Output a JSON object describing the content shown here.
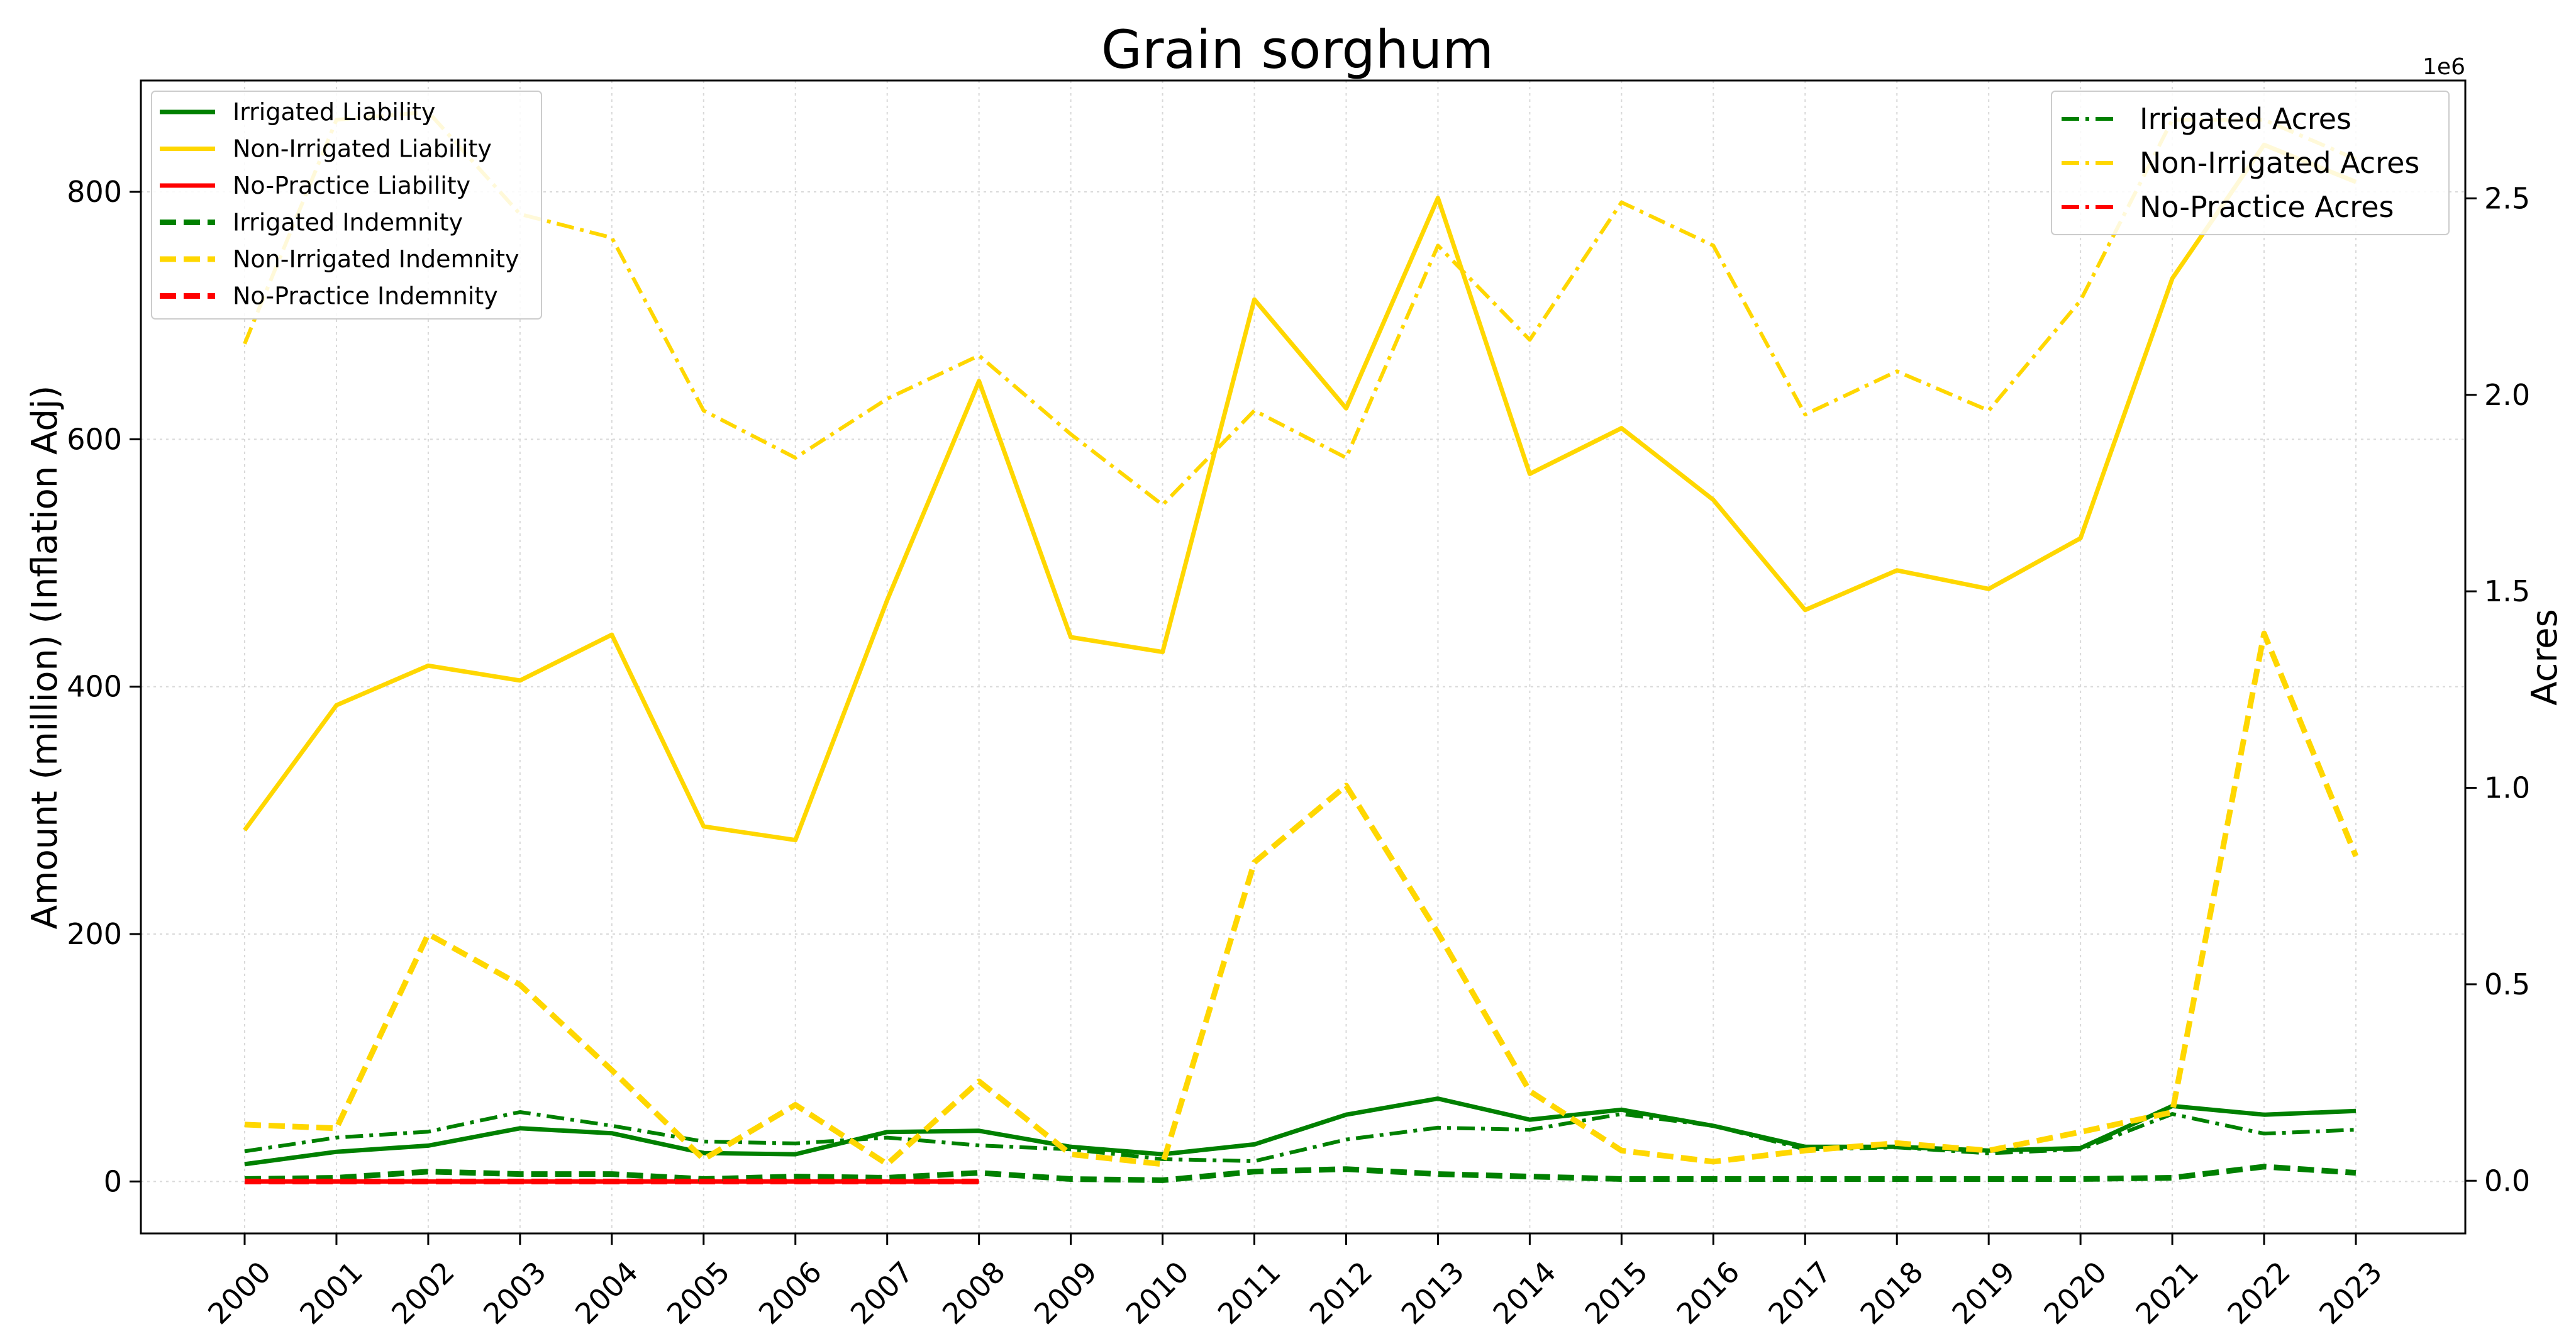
{
  "chart_data": {
    "type": "line",
    "title": "Grain sorghum",
    "ylabel": "Amount (million) (Inflation Adj)",
    "y2label": "Acres",
    "y2_offset_label": "1e6",
    "x": [
      2000,
      2001,
      2002,
      2003,
      2004,
      2005,
      2006,
      2007,
      2008,
      2009,
      2010,
      2011,
      2012,
      2013,
      2014,
      2015,
      2016,
      2017,
      2018,
      2019,
      2020,
      2021,
      2022,
      2023
    ],
    "x_tick_labels": [
      "2000",
      "2001",
      "2002",
      "2003",
      "2004",
      "2005",
      "2006",
      "2007",
      "2008",
      "2009",
      "2010",
      "2011",
      "2012",
      "2013",
      "2014",
      "2015",
      "2016",
      "2017",
      "2018",
      "2019",
      "2020",
      "2021",
      "2022",
      "2023"
    ],
    "ylim": [
      -42,
      890
    ],
    "y_ticks": [
      0,
      200,
      400,
      600,
      800
    ],
    "y_tick_labels": [
      "0",
      "200",
      "400",
      "600",
      "800"
    ],
    "y2lim": [
      -0.134,
      2.8
    ],
    "y2_ticks": [
      0.0,
      0.5,
      1.0,
      1.5,
      2.0,
      2.5
    ],
    "y2_tick_labels": [
      "0.0",
      "0.5",
      "1.0",
      "1.5",
      "2.0",
      "2.5"
    ],
    "grid": true,
    "legend_left_placement": "upper-left",
    "legend_right_placement": "upper-right",
    "series": [
      {
        "name": "Irrigated Liability",
        "axis": "left",
        "style": "solid",
        "color": "#008000",
        "x": [
          2000,
          2001,
          2002,
          2003,
          2004,
          2005,
          2006,
          2007,
          2008,
          2009,
          2010,
          2011,
          2012,
          2013,
          2014,
          2015,
          2016,
          2017,
          2018,
          2019,
          2020,
          2021,
          2022,
          2023
        ],
        "values": [
          14,
          24,
          29,
          43,
          39,
          23,
          22,
          40,
          41,
          28,
          22,
          30,
          54,
          67,
          50,
          58,
          45,
          28,
          28,
          25,
          27,
          61,
          54,
          57
        ]
      },
      {
        "name": "Non-Irrigated Liability",
        "axis": "left",
        "style": "solid",
        "color": "#FFD700",
        "x": [
          2000,
          2001,
          2002,
          2003,
          2004,
          2005,
          2006,
          2007,
          2008,
          2009,
          2010,
          2011,
          2012,
          2013,
          2014,
          2015,
          2016,
          2017,
          2018,
          2019,
          2020,
          2021,
          2022,
          2023
        ],
        "values": [
          284,
          385,
          417,
          405,
          442,
          287,
          276,
          470,
          647,
          440,
          428,
          713,
          625,
          795,
          572,
          609,
          551,
          462,
          494,
          479,
          520,
          730,
          838,
          808
        ]
      },
      {
        "name": "No-Practice Liability",
        "axis": "left",
        "style": "solid",
        "color": "#FF0000",
        "x": [
          2000,
          2001,
          2002,
          2003,
          2004,
          2005,
          2006,
          2007,
          2008
        ],
        "values": [
          0,
          0,
          0,
          0,
          0,
          0,
          0,
          0,
          0
        ]
      },
      {
        "name": "Irrigated Indemnity",
        "axis": "left",
        "style": "dashed",
        "color": "#008000",
        "x": [
          2000,
          2001,
          2002,
          2003,
          2004,
          2005,
          2006,
          2007,
          2008,
          2009,
          2010,
          2011,
          2012,
          2013,
          2014,
          2015,
          2016,
          2017,
          2018,
          2019,
          2020,
          2021,
          2022,
          2023
        ],
        "values": [
          2,
          3,
          8,
          6,
          6,
          2,
          4,
          3,
          7,
          2,
          1,
          8,
          10,
          6,
          4,
          2,
          2,
          2,
          2,
          2,
          2,
          3,
          12,
          7
        ]
      },
      {
        "name": "Non-Irrigated Indemnity",
        "axis": "left",
        "style": "dashed",
        "color": "#FFD700",
        "x": [
          2000,
          2001,
          2002,
          2003,
          2004,
          2005,
          2006,
          2007,
          2008,
          2009,
          2010,
          2011,
          2012,
          2013,
          2014,
          2015,
          2016,
          2017,
          2018,
          2019,
          2020,
          2021,
          2022,
          2023
        ],
        "values": [
          46,
          43,
          200,
          159,
          90,
          18,
          62,
          14,
          81,
          22,
          14,
          258,
          320,
          201,
          73,
          25,
          16,
          25,
          31,
          25,
          40,
          56,
          443,
          263
        ]
      },
      {
        "name": "No-Practice Indemnity",
        "axis": "left",
        "style": "dashed",
        "color": "#FF0000",
        "x": [
          2000,
          2001,
          2002,
          2003,
          2004,
          2005,
          2006,
          2007,
          2008
        ],
        "values": [
          0,
          0,
          0,
          0,
          0,
          0,
          0,
          0,
          0
        ]
      },
      {
        "name": "Irrigated Acres",
        "axis": "right",
        "style": "dashdot",
        "color": "#008000",
        "x": [
          2000,
          2001,
          2002,
          2003,
          2004,
          2005,
          2006,
          2007,
          2008,
          2009,
          2010,
          2011,
          2012,
          2013,
          2014,
          2015,
          2016,
          2017,
          2018,
          2019,
          2020,
          2021,
          2022,
          2023
        ],
        "values": [
          0.075,
          0.11,
          0.125,
          0.175,
          0.14,
          0.1,
          0.095,
          0.11,
          0.09,
          0.08,
          0.055,
          0.05,
          0.105,
          0.135,
          0.13,
          0.17,
          0.14,
          0.08,
          0.085,
          0.07,
          0.08,
          0.17,
          0.12,
          0.13
        ]
      },
      {
        "name": "Non-Irrigated Acres",
        "axis": "right",
        "style": "dashdot",
        "color": "#FFD700",
        "x": [
          2000,
          2001,
          2002,
          2003,
          2004,
          2005,
          2006,
          2007,
          2008,
          2009,
          2010,
          2011,
          2012,
          2013,
          2014,
          2015,
          2016,
          2017,
          2018,
          2019,
          2020,
          2021,
          2022,
          2023
        ],
        "values": [
          2.13,
          2.7,
          2.72,
          2.46,
          2.4,
          1.96,
          1.84,
          1.99,
          2.1,
          1.9,
          1.72,
          1.96,
          1.84,
          2.38,
          2.14,
          2.49,
          2.38,
          1.95,
          2.06,
          1.96,
          2.24,
          2.7,
          2.7,
          2.6
        ]
      },
      {
        "name": "No-Practice Acres",
        "axis": "right",
        "style": "dashdot",
        "color": "#FF0000",
        "x": [],
        "values": []
      }
    ]
  }
}
